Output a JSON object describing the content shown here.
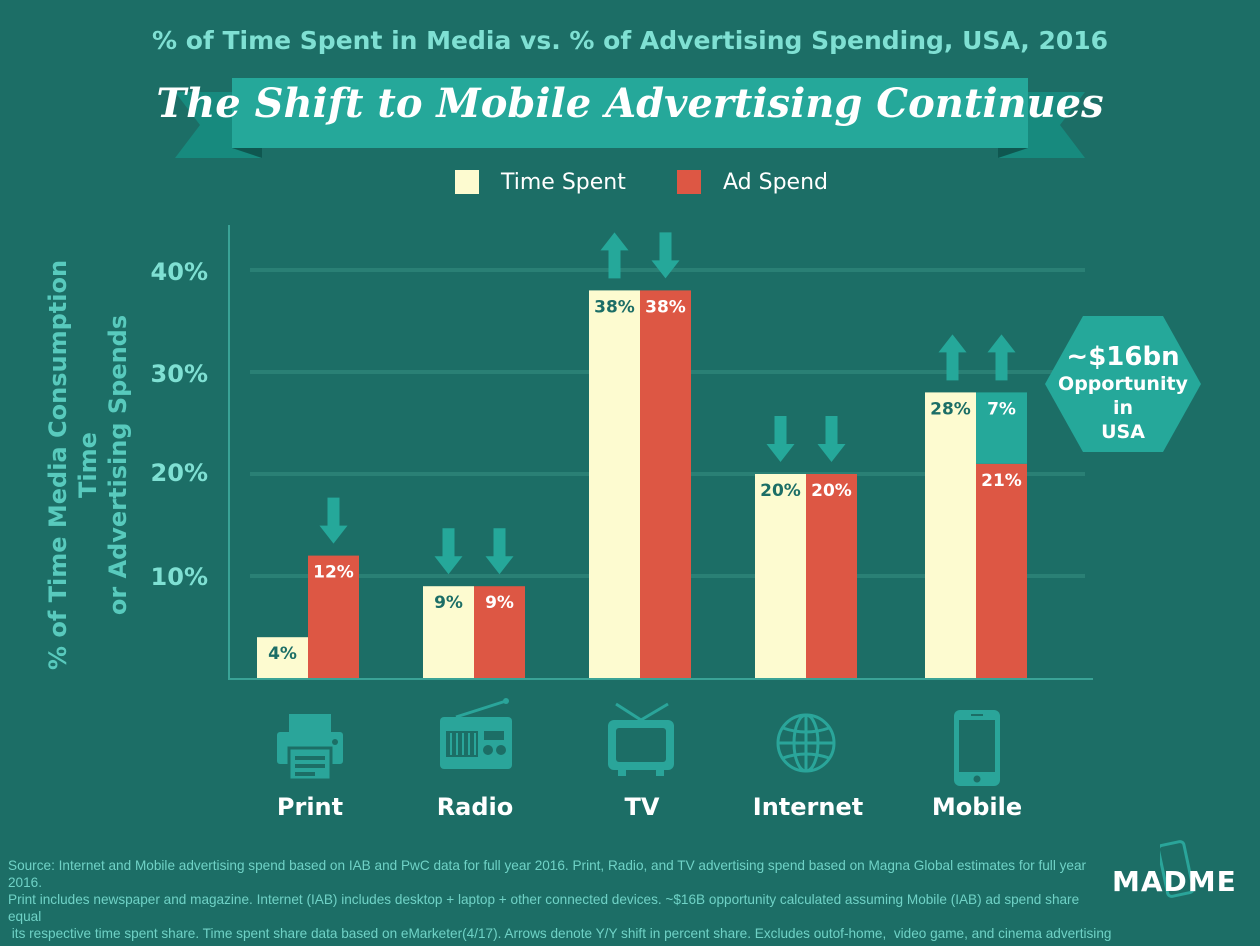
{
  "header": {
    "subtitle": "% of Time Spent in Media vs. % of Advertising Spending, USA, 2016",
    "title": "The Shift to Mobile Advertising Continues"
  },
  "colors": {
    "background": "#1c6e66",
    "time_spent": "#fdfbd0",
    "ad_spend": "#dd5744",
    "teal_accent": "#25a89a",
    "label_teal": "#7fe0d3"
  },
  "chart_data": {
    "type": "bar",
    "title": "The Shift to Mobile Advertising Continues",
    "subtitle": "% of Time Spent in Media vs. % of Advertising Spending, USA, 2016",
    "categories": [
      "Print",
      "Radio",
      "TV",
      "Internet",
      "Mobile"
    ],
    "series": [
      {
        "name": "Time Spent",
        "values": [
          4,
          9,
          38,
          20,
          28
        ],
        "labels": [
          "4%",
          "9%",
          "38%",
          "20%",
          "28%"
        ]
      },
      {
        "name": "Ad Spend",
        "values": [
          12,
          9,
          38,
          20,
          21
        ],
        "labels": [
          "12%",
          "9%",
          "38%",
          "20%",
          "21%"
        ]
      }
    ],
    "mobile_opportunity": {
      "value": 7,
      "label": "7%"
    },
    "arrows": {
      "time_spent": [
        "none",
        "down",
        "up",
        "down",
        "up"
      ],
      "ad_spend": [
        "down",
        "down",
        "down",
        "down",
        "up"
      ]
    },
    "yticks": [
      "10%",
      "20%",
      "30%",
      "40%"
    ],
    "ytick_values": [
      10,
      20,
      30,
      40
    ],
    "ylim": [
      0,
      40
    ],
    "xlabel": "",
    "ylabel": "% of Time Media Consumption Time or Advertising Spends",
    "ylabel_lines": [
      "% of Time Media Consumption Time",
      "or Advertising Spends"
    ],
    "legend": [
      "Time Spent",
      "Ad Spend"
    ],
    "legend_position": "top-center",
    "grid": true
  },
  "category_icons": [
    "printer-icon",
    "radio-icon",
    "tv-icon",
    "globe-icon",
    "mobile-phone-icon"
  ],
  "callout": {
    "amount": "~$16bn",
    "line1": "Opportunity in",
    "line2": "USA"
  },
  "footer": {
    "source_lines": [
      "Source: Internet and Mobile advertising spend based on IAB and PwC data for full year 2016. Print, Radio, and TV advertising spend based  on Magna Global estimates for full year 2016.",
      "Print includes newspaper and magazine. Internet  (IAB) includes desktop + laptop + other connected devices.  ~$16B opportunity calculated assuming Mobile (IAB) ad spend  share equal",
      " its respective time spent share. Time spent share data based on eMarketer(4/17). Arrows denote Y/Y shift in percent share. Excludes outof-home,  video game, and cinema advertising"
    ],
    "logo": "MADME"
  }
}
